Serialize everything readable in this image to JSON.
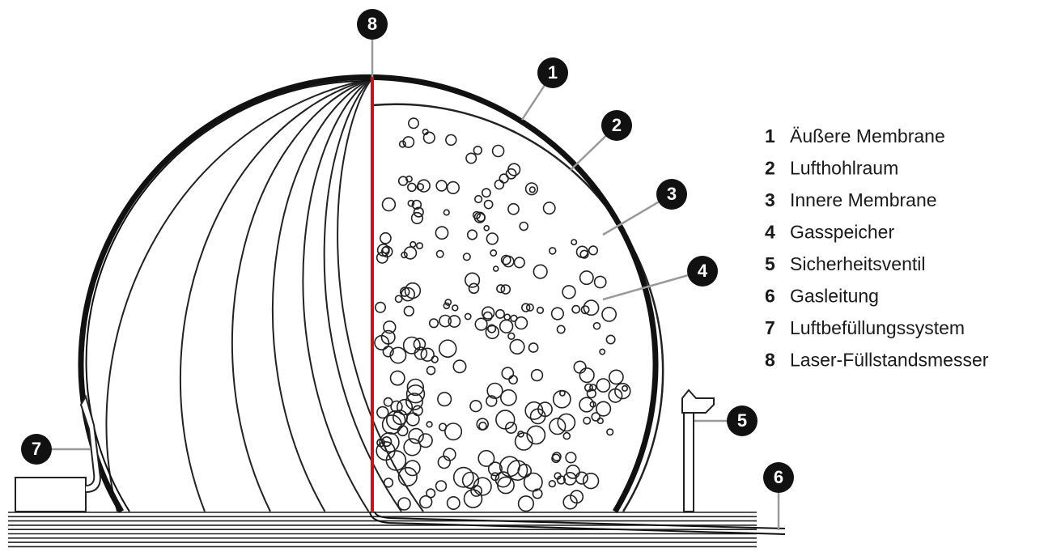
{
  "legend": [
    {
      "number": "1",
      "label": "Äußere Membrane"
    },
    {
      "number": "2",
      "label": "Lufthohlraum"
    },
    {
      "number": "3",
      "label": "Innere Membrane"
    },
    {
      "number": "4",
      "label": "Gasspeicher"
    },
    {
      "number": "5",
      "label": "Sicherheitsventil"
    },
    {
      "number": "6",
      "label": "Gasleitung"
    },
    {
      "number": "7",
      "label": "Luftbefüllungssystem"
    },
    {
      "number": "8",
      "label": "Laser-Füllstandsmesser"
    }
  ]
}
